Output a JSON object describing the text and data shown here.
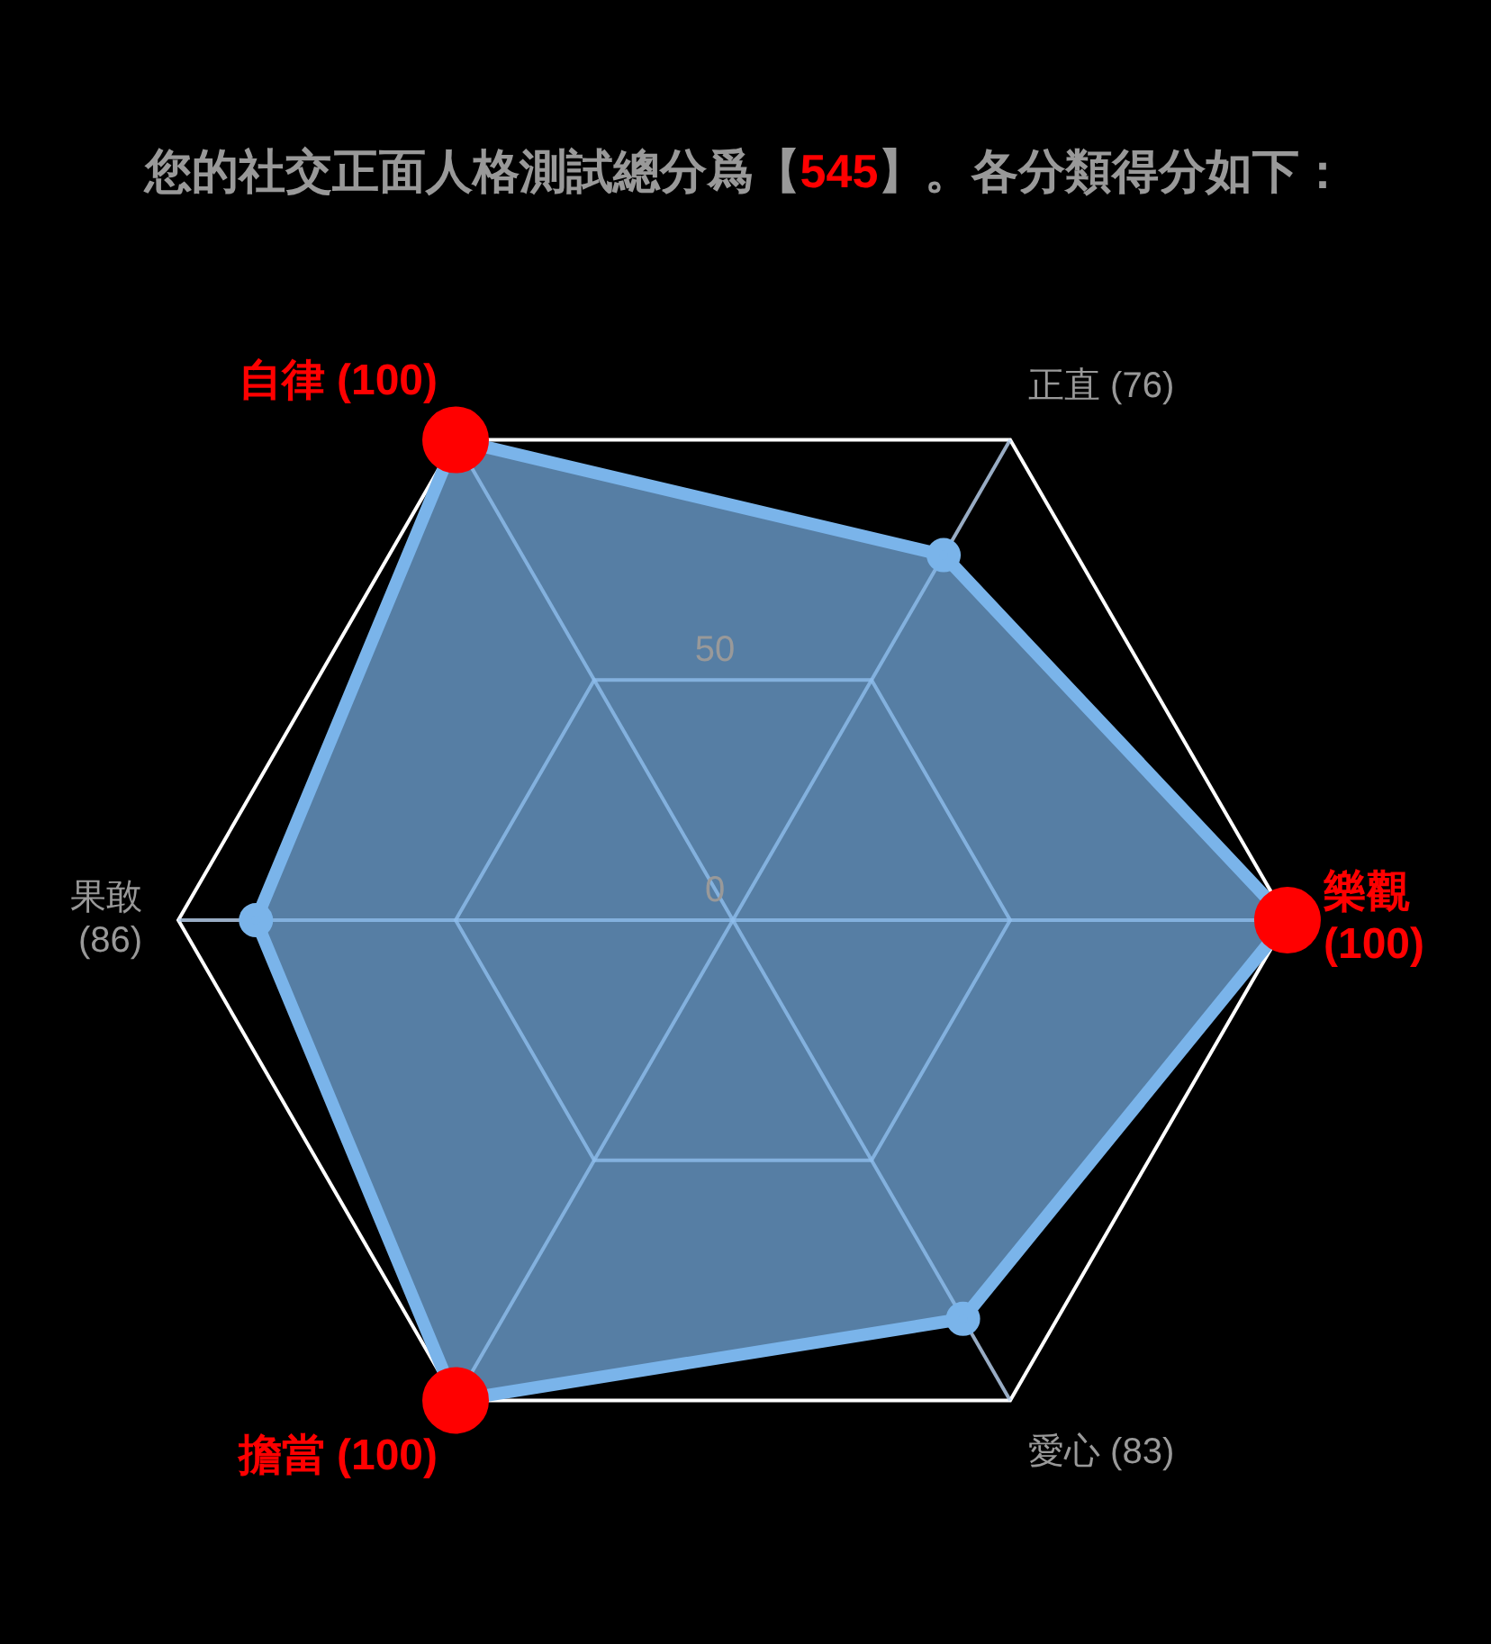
{
  "chart_data": {
    "type": "radar",
    "title": "您的社交正面人格測試總分爲【545】。各分類得分如下：",
    "categories": [
      "正直 (76)",
      "樂觀 (100)",
      "愛心 (83)",
      "擔當 (100)",
      "果敢 (86)",
      "自律 (100)"
    ],
    "series": [
      {
        "color": "#7ab4ea",
        "values": [
          76,
          100,
          83,
          100,
          86,
          100
        ],
        "colors": [
          "#7ab4ea",
          "#ff0000",
          "#7ab4ea",
          "#ff0000",
          "#7ab4ea",
          "#ff0000"
        ]
      }
    ],
    "ylim": [
      0,
      100
    ],
    "yticks": [
      0,
      50
    ],
    "grid": true,
    "legend": false,
    "marker": "circle",
    "line_style": "solid"
  }
}
